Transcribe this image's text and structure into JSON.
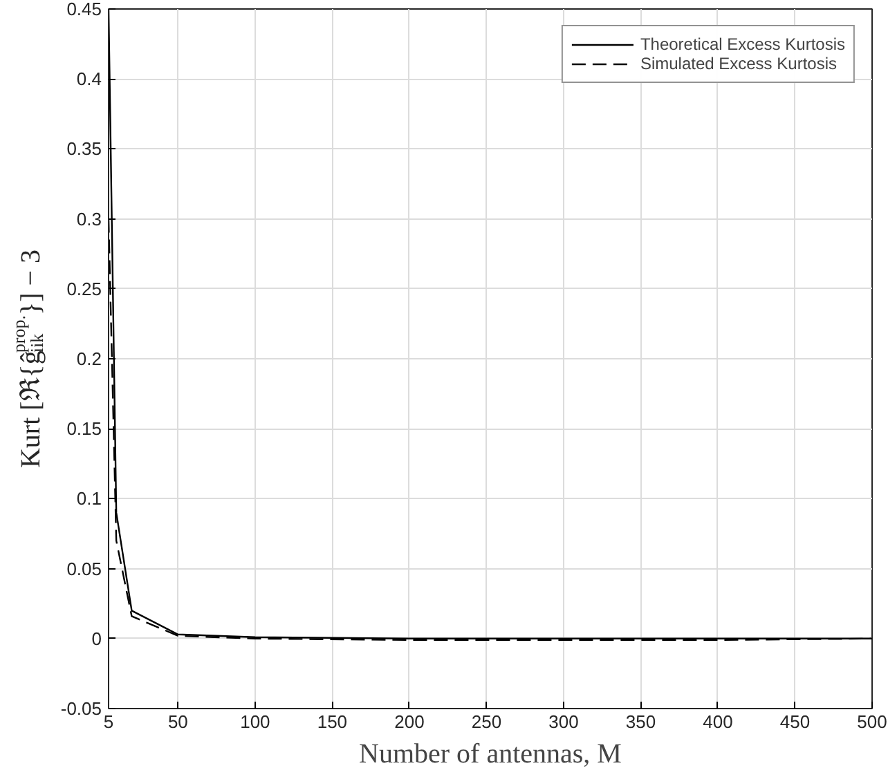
{
  "chart_data": {
    "type": "line",
    "xlabel": "Number of antennas, M",
    "ylabel": "Kurt [ℜ{ĝ$^{prop.}$$_{iik}$}] − 3",
    "x": [
      5,
      10,
      20,
      50,
      100,
      200,
      300,
      400,
      500
    ],
    "series": [
      {
        "name": "Theoretical Excess Kurtosis",
        "color": "#000000",
        "line_style": "solid",
        "values": [
          0.45,
          0.09,
          0.02,
          0.003,
          0.001,
          0,
          0,
          0,
          0
        ]
      },
      {
        "name": "Simulated Excess Kurtosis",
        "color": "#000000",
        "line_style": "dashed",
        "values": [
          0.3,
          0.07,
          0.016,
          0.002,
          0,
          -0.001,
          -0.001,
          -0.001,
          0
        ]
      }
    ],
    "xlim": [
      5,
      500
    ],
    "ylim": [
      -0.05,
      0.45
    ],
    "xticks": [
      5,
      50,
      100,
      150,
      200,
      250,
      300,
      350,
      400,
      450,
      500
    ],
    "yticks": [
      -0.05,
      0,
      0.05,
      0.1,
      0.15,
      0.2,
      0.25,
      0.3,
      0.35,
      0.4,
      0.45
    ],
    "grid": true,
    "legend": "top right",
    "marker": "none"
  }
}
